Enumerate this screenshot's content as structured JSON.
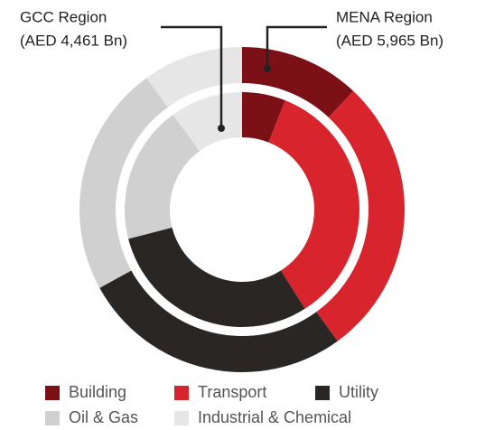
{
  "chart_data": {
    "type": "donut",
    "categories": [
      "Building",
      "Transport",
      "Utility",
      "Oil & Gas",
      "Industrial & Chemical"
    ],
    "colors": [
      "#7b1117",
      "#d8252d",
      "#2a2624",
      "#d0d0d0",
      "#e6e6e6"
    ],
    "series": [
      {
        "name": "MENA Region",
        "label": "(AED 5,965 Bn)",
        "values": [
          12,
          28,
          27,
          23,
          10
        ]
      },
      {
        "name": "GCC Region",
        "label": "(AED 4,461 Bn)",
        "values": [
          6,
          35,
          30,
          19,
          10
        ]
      }
    ]
  }
}
